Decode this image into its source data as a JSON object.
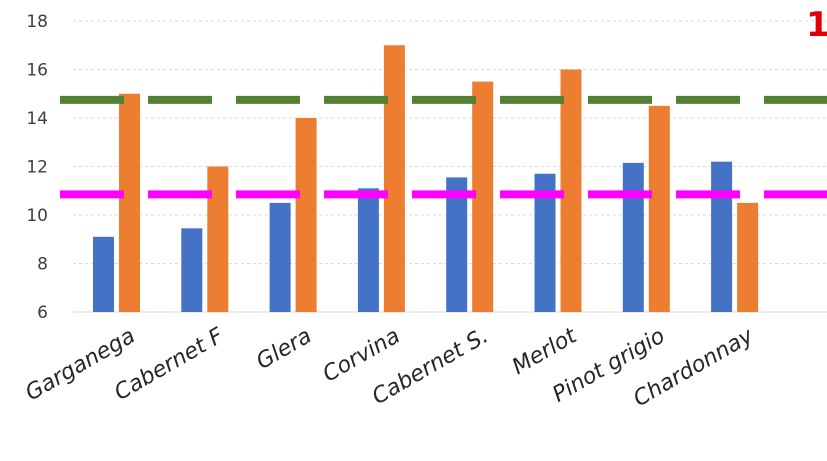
{
  "chart_data": {
    "type": "bar",
    "categories": [
      "Garganega",
      "Cabernet F",
      "Glera",
      "Corvina",
      "Cabernet S.",
      "Merlot",
      "Pinot grigio",
      "Chardonnay"
    ],
    "series": [
      {
        "values": [
          9.1,
          9.45,
          10.5,
          11.1,
          11.55,
          11.7,
          12.15,
          12.2
        ],
        "color": "#4472c4"
      },
      {
        "values": [
          15.0,
          12.0,
          14.0,
          17.0,
          15.5,
          16.0,
          14.5,
          10.5
        ],
        "color": "#ed7d31"
      }
    ],
    "reference_lines": [
      {
        "value": 14.75,
        "color": "#548235",
        "style": "dashed"
      },
      {
        "value": 10.85,
        "color": "#ff00ff",
        "style": "dashed"
      }
    ],
    "title": "",
    "xlabel": "",
    "ylabel": "",
    "ylim": [
      6,
      18
    ],
    "yticks": [
      6,
      8,
      10,
      12,
      14,
      16,
      18
    ],
    "grid": true,
    "legend": "none"
  },
  "corner_label": "1"
}
